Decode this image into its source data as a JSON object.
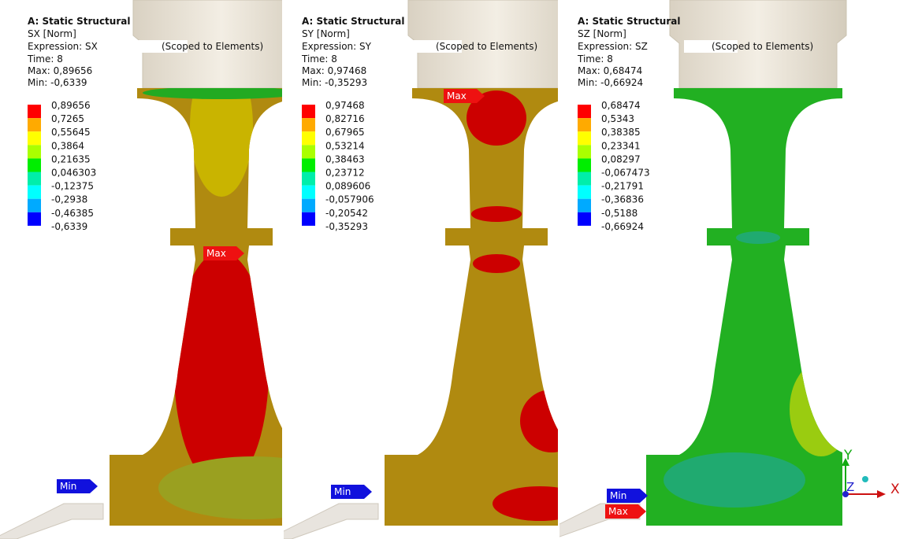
{
  "panels": [
    {
      "title": "A: Static Structural",
      "result": "SX [Norm]",
      "expression": "Expression: SX",
      "scope": "(Scoped to Elements)",
      "time": "Time: 8",
      "max": "Max: 0,89656",
      "min": "Min: -0,6339",
      "legend": [
        "0,89656",
        "0,7265",
        "0,55645",
        "0,3864",
        "0,21635",
        "0,046303",
        "-0,12375",
        "-0,2938",
        "-0,46385",
        "-0,6339"
      ],
      "tags": [
        {
          "label": "Max"
        },
        {
          "label": "Min"
        }
      ]
    },
    {
      "title": "A: Static Structural",
      "result": "SY [Norm]",
      "expression": "Expression: SY",
      "scope": "(Scoped to Elements)",
      "time": "Time: 8",
      "max": "Max: 0,97468",
      "min": "Min: -0,35293",
      "legend": [
        "0,97468",
        "0,82716",
        "0,67965",
        "0,53214",
        "0,38463",
        "0,23712",
        "0,089606",
        "-0,057906",
        "-0,20542",
        "-0,35293"
      ],
      "tags": [
        {
          "label": "Max"
        },
        {
          "label": "Min"
        }
      ]
    },
    {
      "title": "A: Static Structural",
      "result": "SZ [Norm]",
      "expression": "Expression: SZ",
      "scope": "(Scoped to Elements)",
      "time": "Time: 8",
      "max": "Max: 0,68474",
      "min": "Min: -0,66924",
      "legend": [
        "0,68474",
        "0,5343",
        "0,38385",
        "0,23341",
        "0,08297",
        "-0,067473",
        "-0,21791",
        "-0,36836",
        "-0,5188",
        "-0,66924"
      ],
      "tags": [
        {
          "label": "Min"
        },
        {
          "label": "Max"
        }
      ]
    }
  ],
  "triad": {
    "y": "Y",
    "z": "Z",
    "x": "X"
  }
}
